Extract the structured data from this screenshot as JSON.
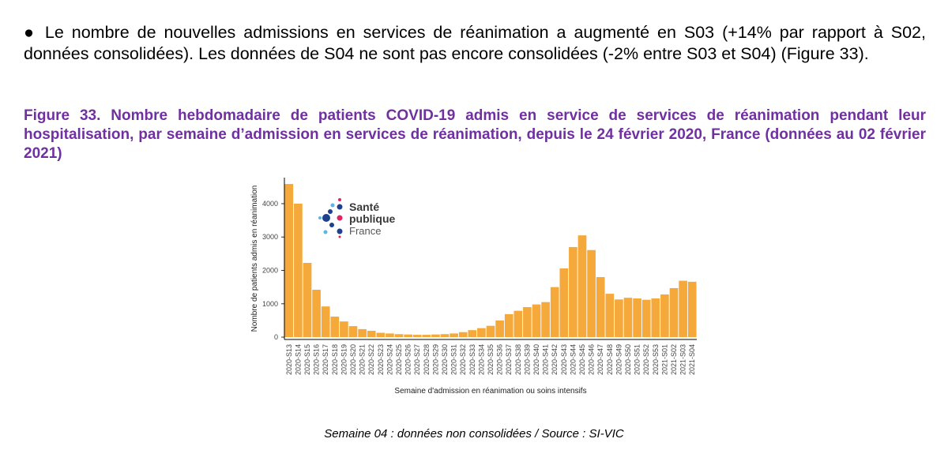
{
  "paragraph": "● Le nombre de nouvelles admissions en services de réanimation a augmenté en S03 (+14% par rapport à S02, données consolidées). Les données de S04 ne sont pas encore consolidées (-2% entre S03 et S04) (Figure 33).",
  "figure_title": "Figure 33. Nombre hebdomadaire de patients COVID-19 admis en service de services de réanimation pendant leur hospitalisation, par semaine d’admission en services de réanimation, depuis le 24 février 2020, France (données au 02 février 2021)",
  "caption": "Semaine 04 : données non consolidées / Source : SI-VIC",
  "logo": {
    "line1": "Santé",
    "line2": "publique",
    "line3": "France"
  },
  "chart_data": {
    "type": "bar",
    "x_label": "Semaine d'admission en réanimation ou soins intensifs",
    "y_label": "Nombre de patients admis en réanimation",
    "categories": [
      "2020-S13",
      "2020-S14",
      "2020-S15",
      "2020-S16",
      "2020-S17",
      "2020-S18",
      "2020-S19",
      "2020-S20",
      "2020-S21",
      "2020-S22",
      "2020-S23",
      "2020-S24",
      "2020-S25",
      "2020-S26",
      "2020-S27",
      "2020-S28",
      "2020-S29",
      "2020-S30",
      "2020-S31",
      "2020-S32",
      "2020-S33",
      "2020-S34",
      "2020-S35",
      "2020-S36",
      "2020-S37",
      "2020-S38",
      "2020-S39",
      "2020-S40",
      "2020-S41",
      "2020-S42",
      "2020-S43",
      "2020-S44",
      "2020-S45",
      "2020-S46",
      "2020-S47",
      "2020-S48",
      "2020-S49",
      "2020-S50",
      "2020-S51",
      "2020-S52",
      "2020-S53",
      "2021-S01",
      "2021-S02",
      "2021-S03",
      "2021-S04"
    ],
    "values": [
      4590,
      4000,
      2225,
      1420,
      920,
      615,
      470,
      330,
      240,
      190,
      130,
      110,
      90,
      80,
      70,
      70,
      80,
      90,
      110,
      150,
      210,
      270,
      340,
      500,
      690,
      790,
      900,
      980,
      1050,
      1500,
      2060,
      2700,
      3050,
      2610,
      1800,
      1300,
      1130,
      1180,
      1160,
      1120,
      1160,
      1280,
      1470,
      1690,
      1660
    ],
    "color": "#f5a93a",
    "ylim": [
      -70,
      4780
    ],
    "yticks": [
      0,
      1000,
      2000,
      3000,
      4000
    ]
  }
}
